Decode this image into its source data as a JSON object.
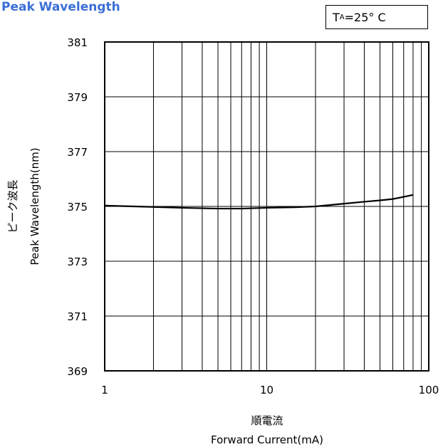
{
  "title": "Peak Wavelength",
  "condition": {
    "prefix": "T",
    "sub": "A",
    "suffix": "=25° C"
  },
  "chart_data": {
    "type": "line",
    "x_scale": "log",
    "xlim": [
      1,
      100
    ],
    "ylim": [
      369,
      381
    ],
    "x_ticks": [
      1,
      10,
      100
    ],
    "x_tick_labels": [
      "1",
      "10",
      "100"
    ],
    "y_ticks": [
      369,
      371,
      373,
      375,
      377,
      379,
      381
    ],
    "y_tick_labels": [
      "369",
      "371",
      "373",
      "375",
      "377",
      "379",
      "381"
    ],
    "grid": true,
    "xlabel_jp": "順電流",
    "xlabel": "Forward Current(mA)",
    "ylabel_jp": "ピーク波長",
    "ylabel": "Peak Wavelength(nm)",
    "series": [
      {
        "x": [
          1,
          2,
          3,
          5,
          7,
          10,
          15,
          20,
          30,
          40,
          50,
          60,
          70,
          80
        ],
        "y": [
          375.03,
          374.98,
          374.95,
          374.92,
          374.92,
          374.95,
          374.97,
          375.0,
          375.1,
          375.17,
          375.22,
          375.27,
          375.35,
          375.42
        ]
      }
    ]
  }
}
